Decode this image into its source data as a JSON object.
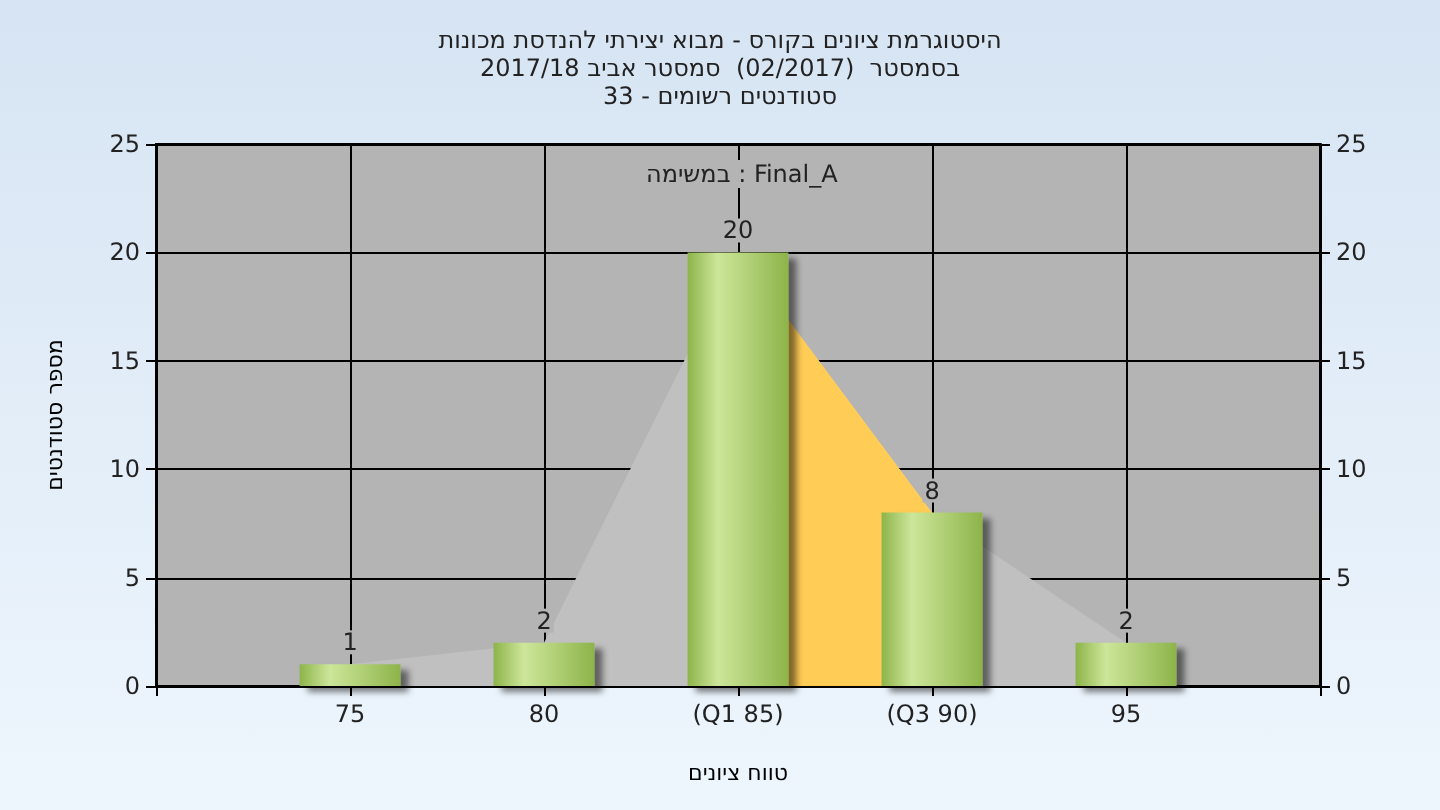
{
  "chart_data": {
    "type": "bar",
    "title": "היסטוגרמת ציונים בקורס - מבוא יצירתי להנדסת מכונות\nבסמסטר  (02/2017)  סמסטר אביב 2017/18\nסטודנטים רשומים - 33",
    "annotations": [
      "במשימה : Final_A"
    ],
    "xlabel": "טווח ציונים",
    "ylabel": "מספר סטודנטים",
    "categories": [
      null,
      "75",
      "80",
      "(Q1 85)",
      "(Q3 90)",
      "95",
      null
    ],
    "series": [
      {
        "type": "area",
        "color": "#c0c0c0",
        "values": [
          null,
          1,
          2,
          20,
          8,
          2,
          null
        ]
      },
      {
        "type": "area",
        "color": "#ffcc55",
        "values": [
          null,
          null,
          null,
          20,
          8,
          null,
          null
        ]
      },
      {
        "color": "#8db44a",
        "values": [
          null,
          1,
          2,
          20,
          8,
          2,
          null
        ],
        "value_labels": [
          null,
          "1",
          "2",
          "20",
          "8",
          "2",
          null
        ]
      }
    ],
    "ylim": [
      0,
      25
    ],
    "yticks": [
      0,
      5,
      10,
      15,
      20,
      25
    ],
    "y2lim": [
      0,
      25
    ],
    "y2ticks": [
      0,
      5,
      10,
      15,
      20,
      25
    ],
    "grid": true
  }
}
